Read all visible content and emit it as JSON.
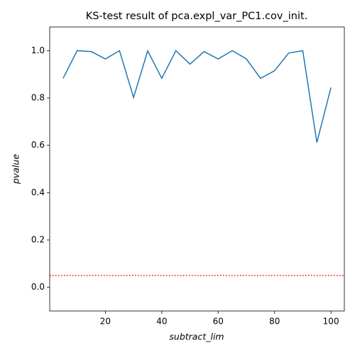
{
  "chart_data": {
    "type": "line",
    "title": "KS-test result of pca.expl_var_PC1.cov_init.",
    "xlabel": "subtract_lim",
    "ylabel": "pvalue",
    "x": [
      5,
      10,
      15,
      20,
      25,
      30,
      35,
      40,
      45,
      50,
      55,
      60,
      65,
      70,
      75,
      80,
      85,
      90,
      95,
      100
    ],
    "series": [
      {
        "name": "pvalue",
        "color": "#1f77b4",
        "values": [
          0.883,
          1.0,
          0.996,
          0.965,
          1.0,
          0.802,
          0.999,
          0.883,
          1.0,
          0.943,
          0.996,
          0.965,
          1.0,
          0.965,
          0.883,
          0.915,
          0.99,
          1.0,
          0.612,
          0.844
        ]
      }
    ],
    "hline": {
      "value": 0.05,
      "color": "#ff0000"
    },
    "xlim": [
      0.25,
      104.75
    ],
    "ylim": [
      -0.1,
      1.1
    ],
    "xticks": [
      20,
      40,
      60,
      80,
      100
    ],
    "yticks": [
      {
        "value": 0.0,
        "label": "0.0"
      },
      0.2,
      0.4,
      0.6,
      0.8,
      {
        "value": 1.0,
        "label": "1.0"
      }
    ],
    "grid": false
  }
}
